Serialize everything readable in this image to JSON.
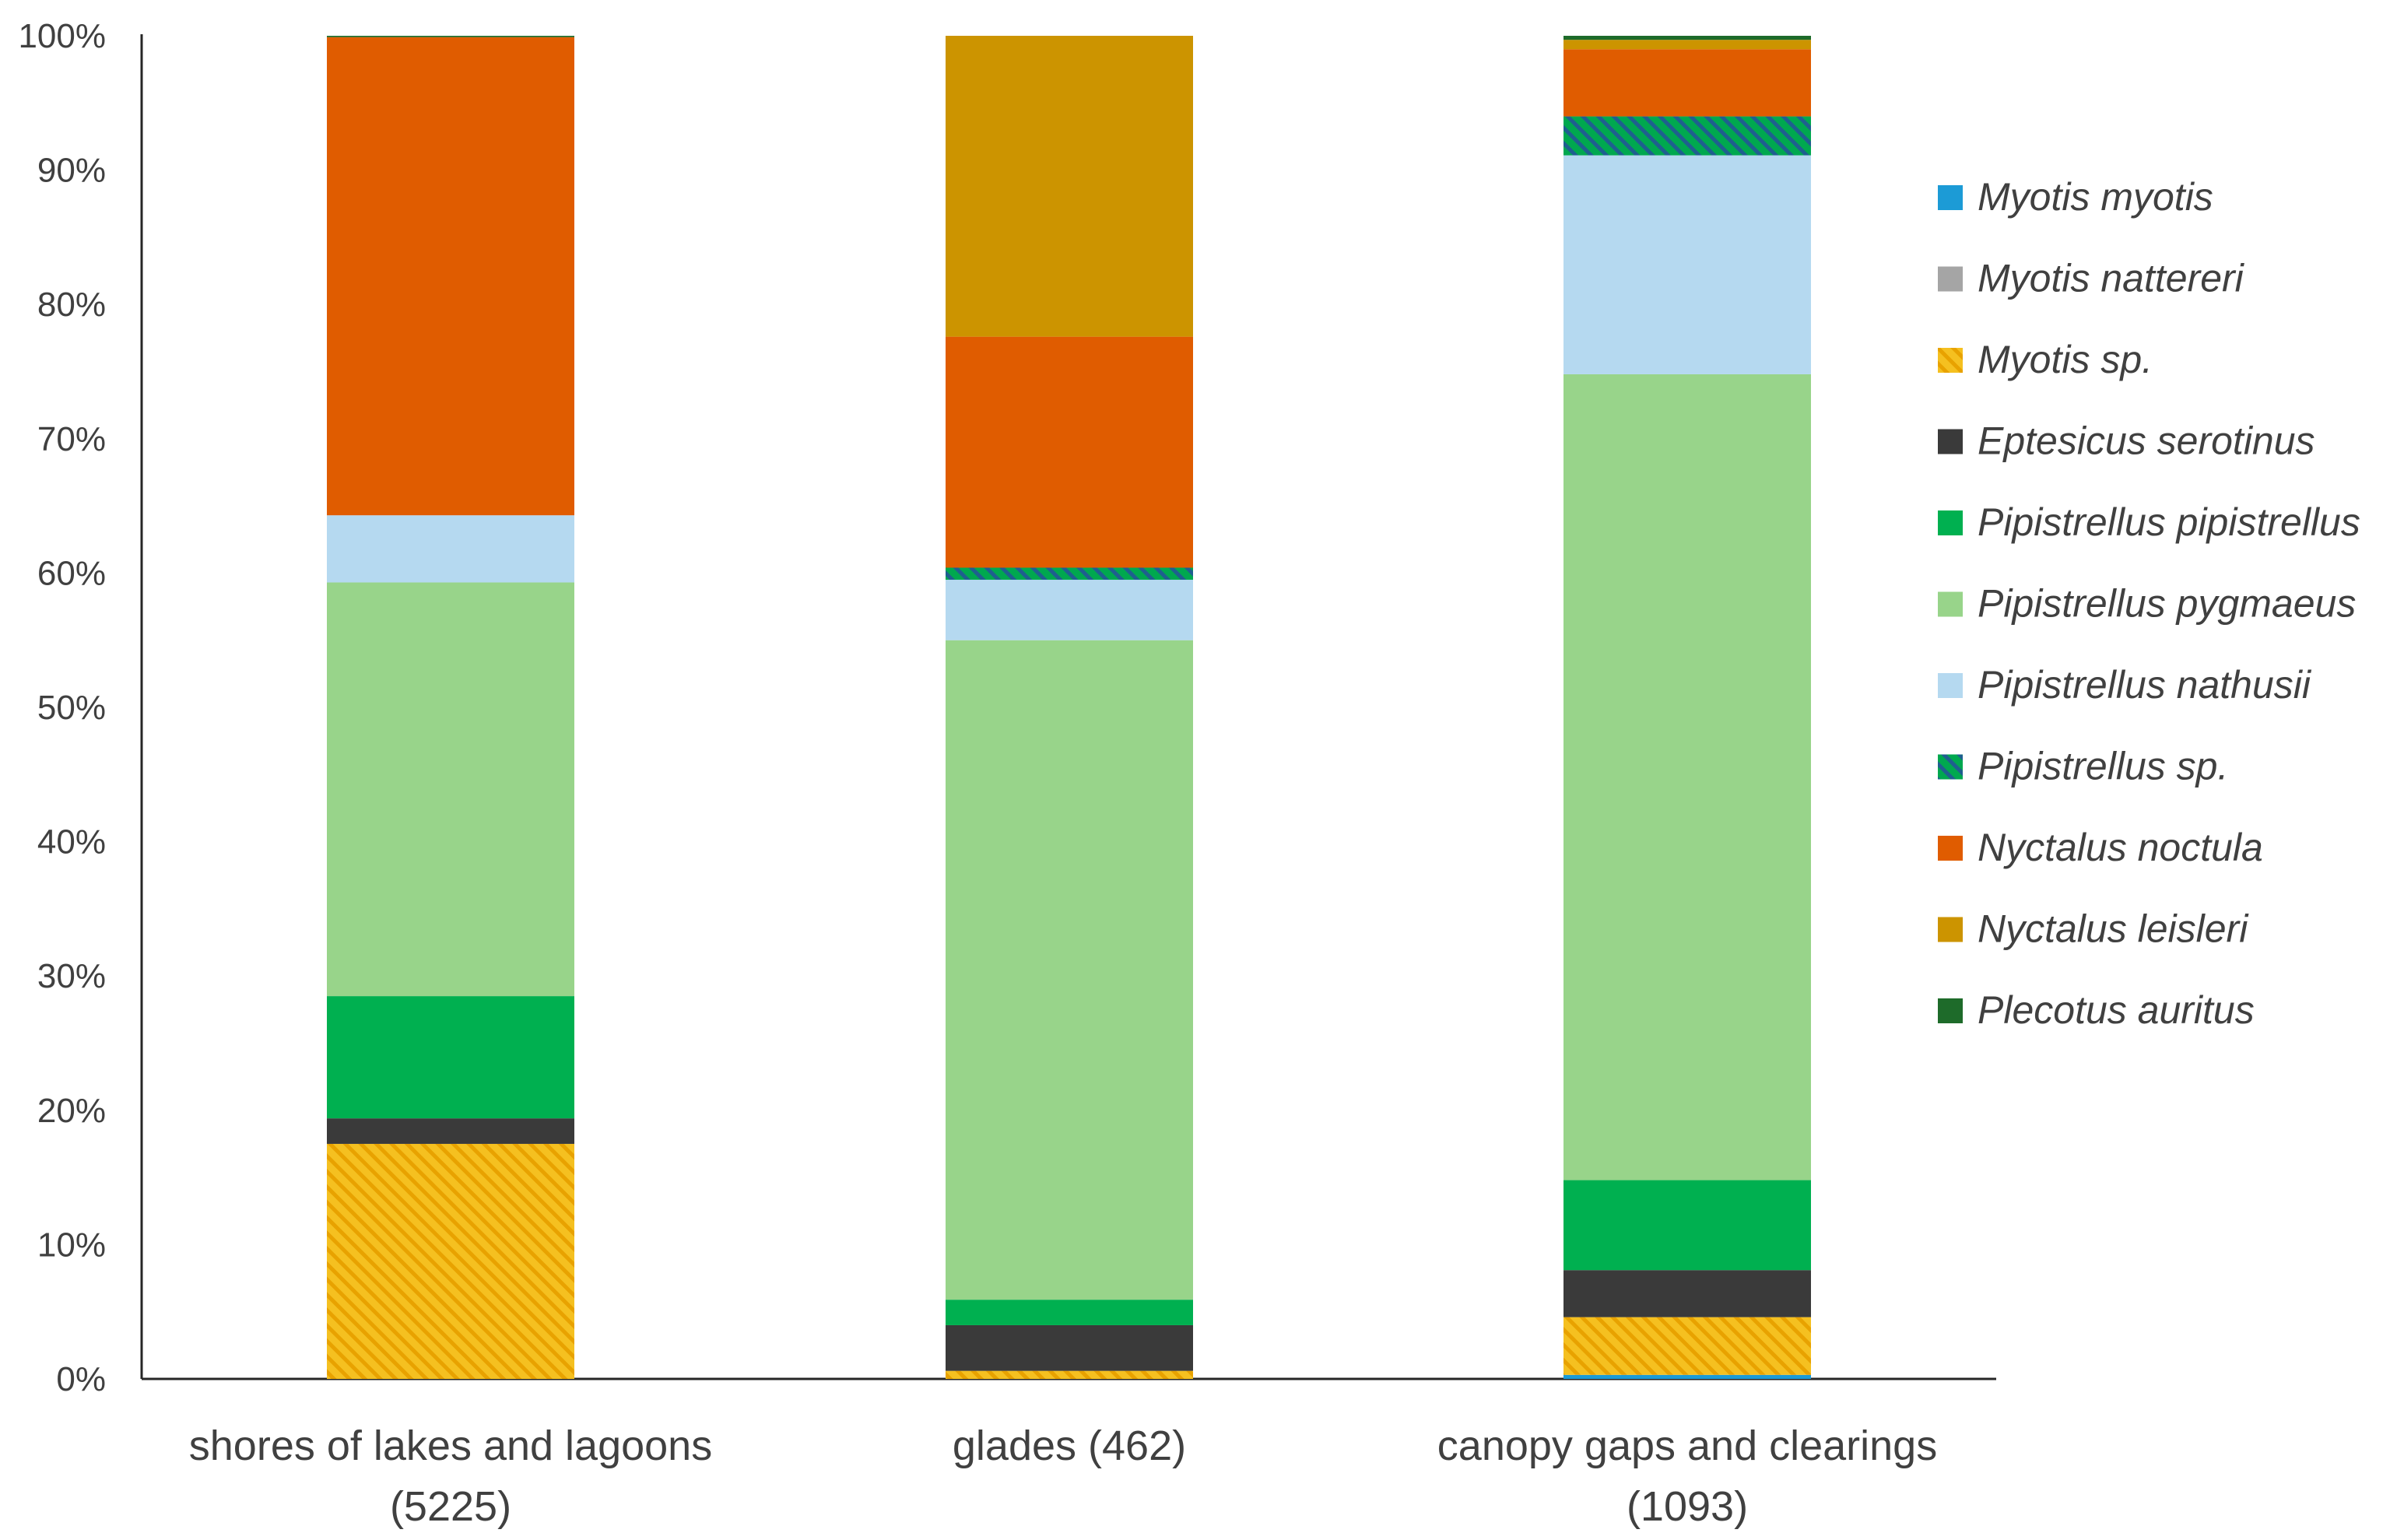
{
  "chart_data": {
    "type": "bar",
    "stacked": true,
    "percent": true,
    "title": "",
    "xlabel": "",
    "ylabel": "",
    "ylim": [
      0,
      100
    ],
    "yticks": [
      0,
      10,
      20,
      30,
      40,
      50,
      60,
      70,
      80,
      90,
      100
    ],
    "ytick_labels": [
      "0%",
      "10%",
      "20%",
      "30%",
      "40%",
      "50%",
      "60%",
      "70%",
      "80%",
      "90%",
      "100%"
    ],
    "categories": [
      [
        "shores of lakes and lagoons",
        "(5225)"
      ],
      [
        "glades (462)"
      ],
      [
        "canopy gaps and clearings",
        "(1093)"
      ]
    ],
    "legend_position": "right",
    "series": [
      {
        "name": "Myotis myotis",
        "color": "#1c9bd6",
        "hatch": null,
        "values": [
          0.0,
          0.0,
          0.3
        ]
      },
      {
        "name": "Myotis nattereri",
        "color": "#a5a5a5",
        "hatch": null,
        "values": [
          0.0,
          0.0,
          0.0
        ]
      },
      {
        "name": "Myotis sp.",
        "color": "#f5c020",
        "hatch": "#e8a200",
        "values": [
          17.5,
          0.6,
          4.3
        ]
      },
      {
        "name": "Eptesicus serotinus",
        "color": "#3a3a3a",
        "hatch": null,
        "values": [
          1.9,
          3.4,
          3.5
        ]
      },
      {
        "name": "Pipistrellus pipistrellus",
        "color": "#00b050",
        "hatch": null,
        "values": [
          9.1,
          1.9,
          6.7
        ]
      },
      {
        "name": "Pipistrellus pygmaeus",
        "color": "#98d48a",
        "hatch": null,
        "values": [
          30.8,
          49.1,
          60.0
        ]
      },
      {
        "name": "Pipistrellus nathusii",
        "color": "#b5d9f0",
        "hatch": null,
        "values": [
          5.0,
          4.5,
          16.3
        ]
      },
      {
        "name": "Pipistrellus sp.",
        "color": "#00a84f",
        "hatch": "#1f5f8f",
        "values": [
          0.0,
          0.9,
          2.9
        ]
      },
      {
        "name": "Nyctalus noctula",
        "color": "#e05c00",
        "hatch": null,
        "values": [
          35.6,
          17.2,
          5.0
        ]
      },
      {
        "name": "Nyctalus leisleri",
        "color": "#cc9400",
        "hatch": null,
        "values": [
          0.0,
          22.4,
          0.7
        ]
      },
      {
        "name": "Plecotus auritus",
        "color": "#1e6b2a",
        "hatch": null,
        "values": [
          0.1,
          0.0,
          0.3
        ]
      }
    ]
  }
}
